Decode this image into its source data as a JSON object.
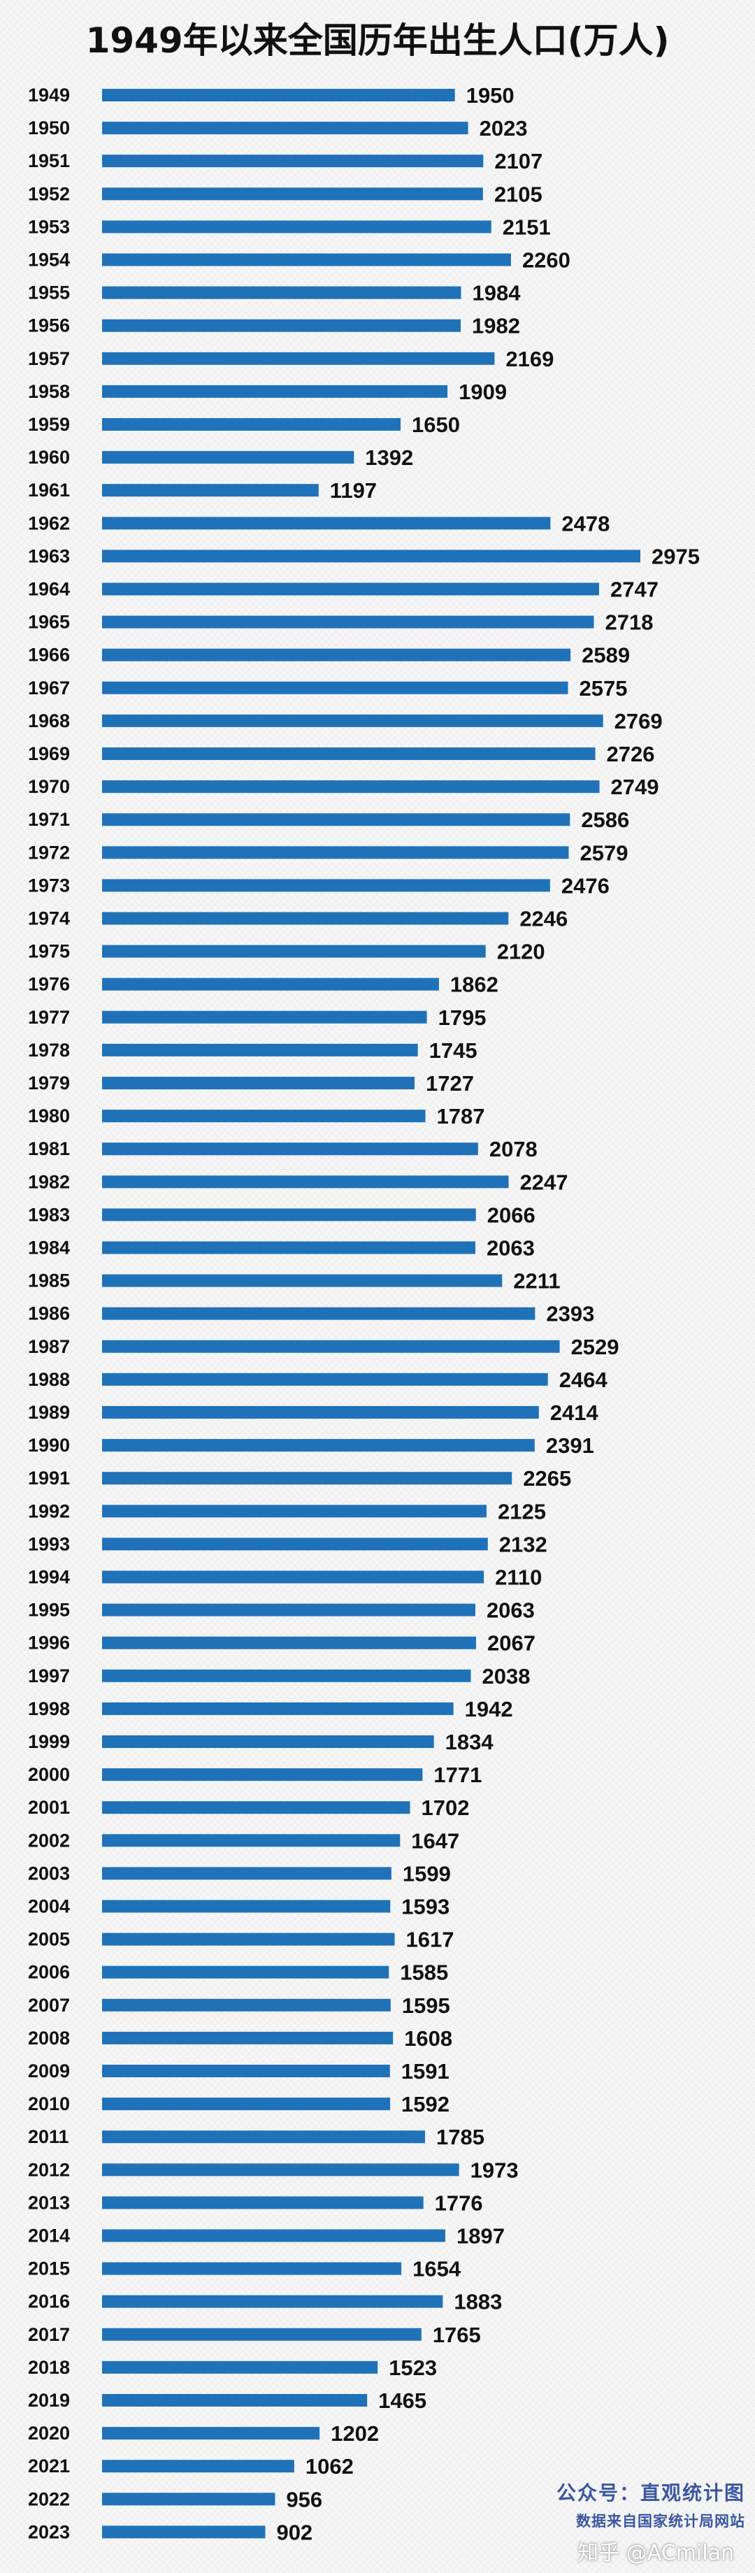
{
  "title": "1949年以来全国历年出生人口(万人)",
  "watermark": {
    "line1": "公众号：直观统计图",
    "line2": "数据来自国家统计局网站",
    "line3": "知乎 @ACmilan"
  },
  "colors": {
    "bar": "#1f72b8",
    "label": "#111111",
    "background": "#f6f6f6"
  },
  "chart_data": {
    "type": "bar",
    "orientation": "horizontal",
    "title": "1949年以来全国历年出生人口(万人)",
    "categories": [
      "1949",
      "1950",
      "1951",
      "1952",
      "1953",
      "1954",
      "1955",
      "1956",
      "1957",
      "1958",
      "1959",
      "1960",
      "1961",
      "1962",
      "1963",
      "1964",
      "1965",
      "1966",
      "1967",
      "1968",
      "1969",
      "1970",
      "1971",
      "1972",
      "1973",
      "1974",
      "1975",
      "1976",
      "1977",
      "1978",
      "1979",
      "1980",
      "1981",
      "1982",
      "1983",
      "1984",
      "1985",
      "1986",
      "1987",
      "1988",
      "1989",
      "1990",
      "1991",
      "1992",
      "1993",
      "1994",
      "1995",
      "1996",
      "1997",
      "1998",
      "1999",
      "2000",
      "2001",
      "2002",
      "2003",
      "2004",
      "2005",
      "2006",
      "2007",
      "2008",
      "2009",
      "2010",
      "2011",
      "2012",
      "2013",
      "2014",
      "2015",
      "2016",
      "2017",
      "2018",
      "2019",
      "2020",
      "2021",
      "2022",
      "2023"
    ],
    "values": [
      1950,
      2023,
      2107,
      2105,
      2151,
      2260,
      1984,
      1982,
      2169,
      1909,
      1650,
      1392,
      1197,
      2478,
      2975,
      2747,
      2718,
      2589,
      2575,
      2769,
      2726,
      2749,
      2586,
      2579,
      2476,
      2246,
      2120,
      1862,
      1795,
      1745,
      1727,
      1787,
      2078,
      2247,
      2066,
      2063,
      2211,
      2393,
      2529,
      2464,
      2414,
      2391,
      2265,
      2125,
      2132,
      2110,
      2063,
      2067,
      2038,
      1942,
      1834,
      1771,
      1702,
      1647,
      1599,
      1593,
      1617,
      1585,
      1595,
      1608,
      1591,
      1592,
      1785,
      1973,
      1776,
      1897,
      1654,
      1883,
      1765,
      1523,
      1465,
      1202,
      1062,
      956,
      902
    ],
    "xlim": [
      0,
      2975
    ],
    "data_labels": true,
    "grid": false,
    "legend": "none"
  }
}
